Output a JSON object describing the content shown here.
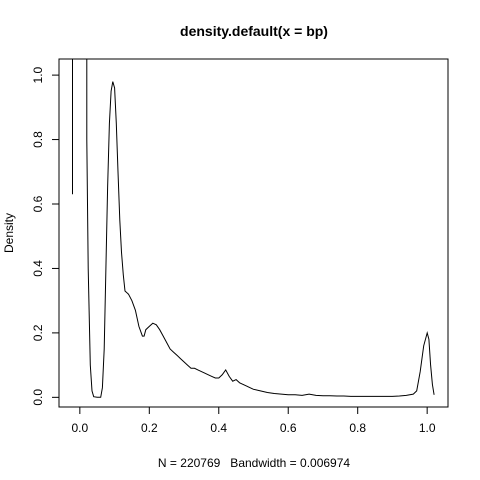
{
  "chart_data": {
    "type": "line",
    "title": "density.default(x = bp)",
    "xlabel": "N = 220769   Bandwidth = 0.006974",
    "ylabel": "Density",
    "xlim": [
      -0.06,
      1.06
    ],
    "ylim": [
      -0.03,
      1.05
    ],
    "x_ticks": [
      0.0,
      0.2,
      0.4,
      0.6,
      0.8,
      1.0
    ],
    "x_tick_labels": [
      "0.0",
      "0.2",
      "0.4",
      "0.6",
      "0.8",
      "1.0"
    ],
    "y_ticks": [
      0.0,
      0.2,
      0.4,
      0.6,
      0.8,
      1.0
    ],
    "y_tick_labels": [
      "0.0",
      "0.2",
      "0.4",
      "0.6",
      "0.8",
      "1.0"
    ],
    "grid": false,
    "series": [
      {
        "x": [
          -0.021,
          -0.021,
          -0.021,
          0.02,
          0.02,
          0.024,
          0.03,
          0.035,
          0.04,
          0.05,
          0.06,
          0.065,
          0.07,
          0.075,
          0.08,
          0.085,
          0.09,
          0.095,
          0.1,
          0.105,
          0.11,
          0.115,
          0.12,
          0.125,
          0.13,
          0.14,
          0.15,
          0.16,
          0.17,
          0.18,
          0.185,
          0.19,
          0.2,
          0.21,
          0.22,
          0.23,
          0.24,
          0.25,
          0.26,
          0.27,
          0.28,
          0.29,
          0.3,
          0.31,
          0.32,
          0.33,
          0.34,
          0.35,
          0.36,
          0.37,
          0.38,
          0.39,
          0.4,
          0.41,
          0.42,
          0.43,
          0.44,
          0.45,
          0.46,
          0.47,
          0.48,
          0.49,
          0.5,
          0.52,
          0.54,
          0.56,
          0.58,
          0.6,
          0.62,
          0.64,
          0.66,
          0.68,
          0.7,
          0.72,
          0.74,
          0.76,
          0.78,
          0.8,
          0.82,
          0.84,
          0.86,
          0.88,
          0.9,
          0.92,
          0.94,
          0.96,
          0.97,
          0.98,
          0.99,
          1.0,
          1.005,
          1.01,
          1.015,
          1.02
        ],
        "y": [
          0.63,
          0.9,
          1.05,
          1.05,
          0.8,
          0.4,
          0.1,
          0.02,
          0.002,
          0.0,
          0.0,
          0.03,
          0.15,
          0.4,
          0.65,
          0.85,
          0.95,
          0.98,
          0.96,
          0.85,
          0.7,
          0.55,
          0.45,
          0.38,
          0.33,
          0.32,
          0.3,
          0.27,
          0.22,
          0.19,
          0.19,
          0.21,
          0.22,
          0.23,
          0.225,
          0.21,
          0.19,
          0.17,
          0.15,
          0.14,
          0.13,
          0.12,
          0.11,
          0.1,
          0.09,
          0.09,
          0.085,
          0.08,
          0.075,
          0.07,
          0.065,
          0.06,
          0.06,
          0.07,
          0.085,
          0.065,
          0.05,
          0.055,
          0.045,
          0.04,
          0.035,
          0.03,
          0.025,
          0.02,
          0.015,
          0.012,
          0.01,
          0.008,
          0.008,
          0.006,
          0.01,
          0.006,
          0.005,
          0.005,
          0.004,
          0.004,
          0.003,
          0.003,
          0.003,
          0.003,
          0.003,
          0.003,
          0.003,
          0.004,
          0.006,
          0.01,
          0.02,
          0.08,
          0.16,
          0.2,
          0.18,
          0.1,
          0.04,
          0.008
        ]
      }
    ]
  }
}
